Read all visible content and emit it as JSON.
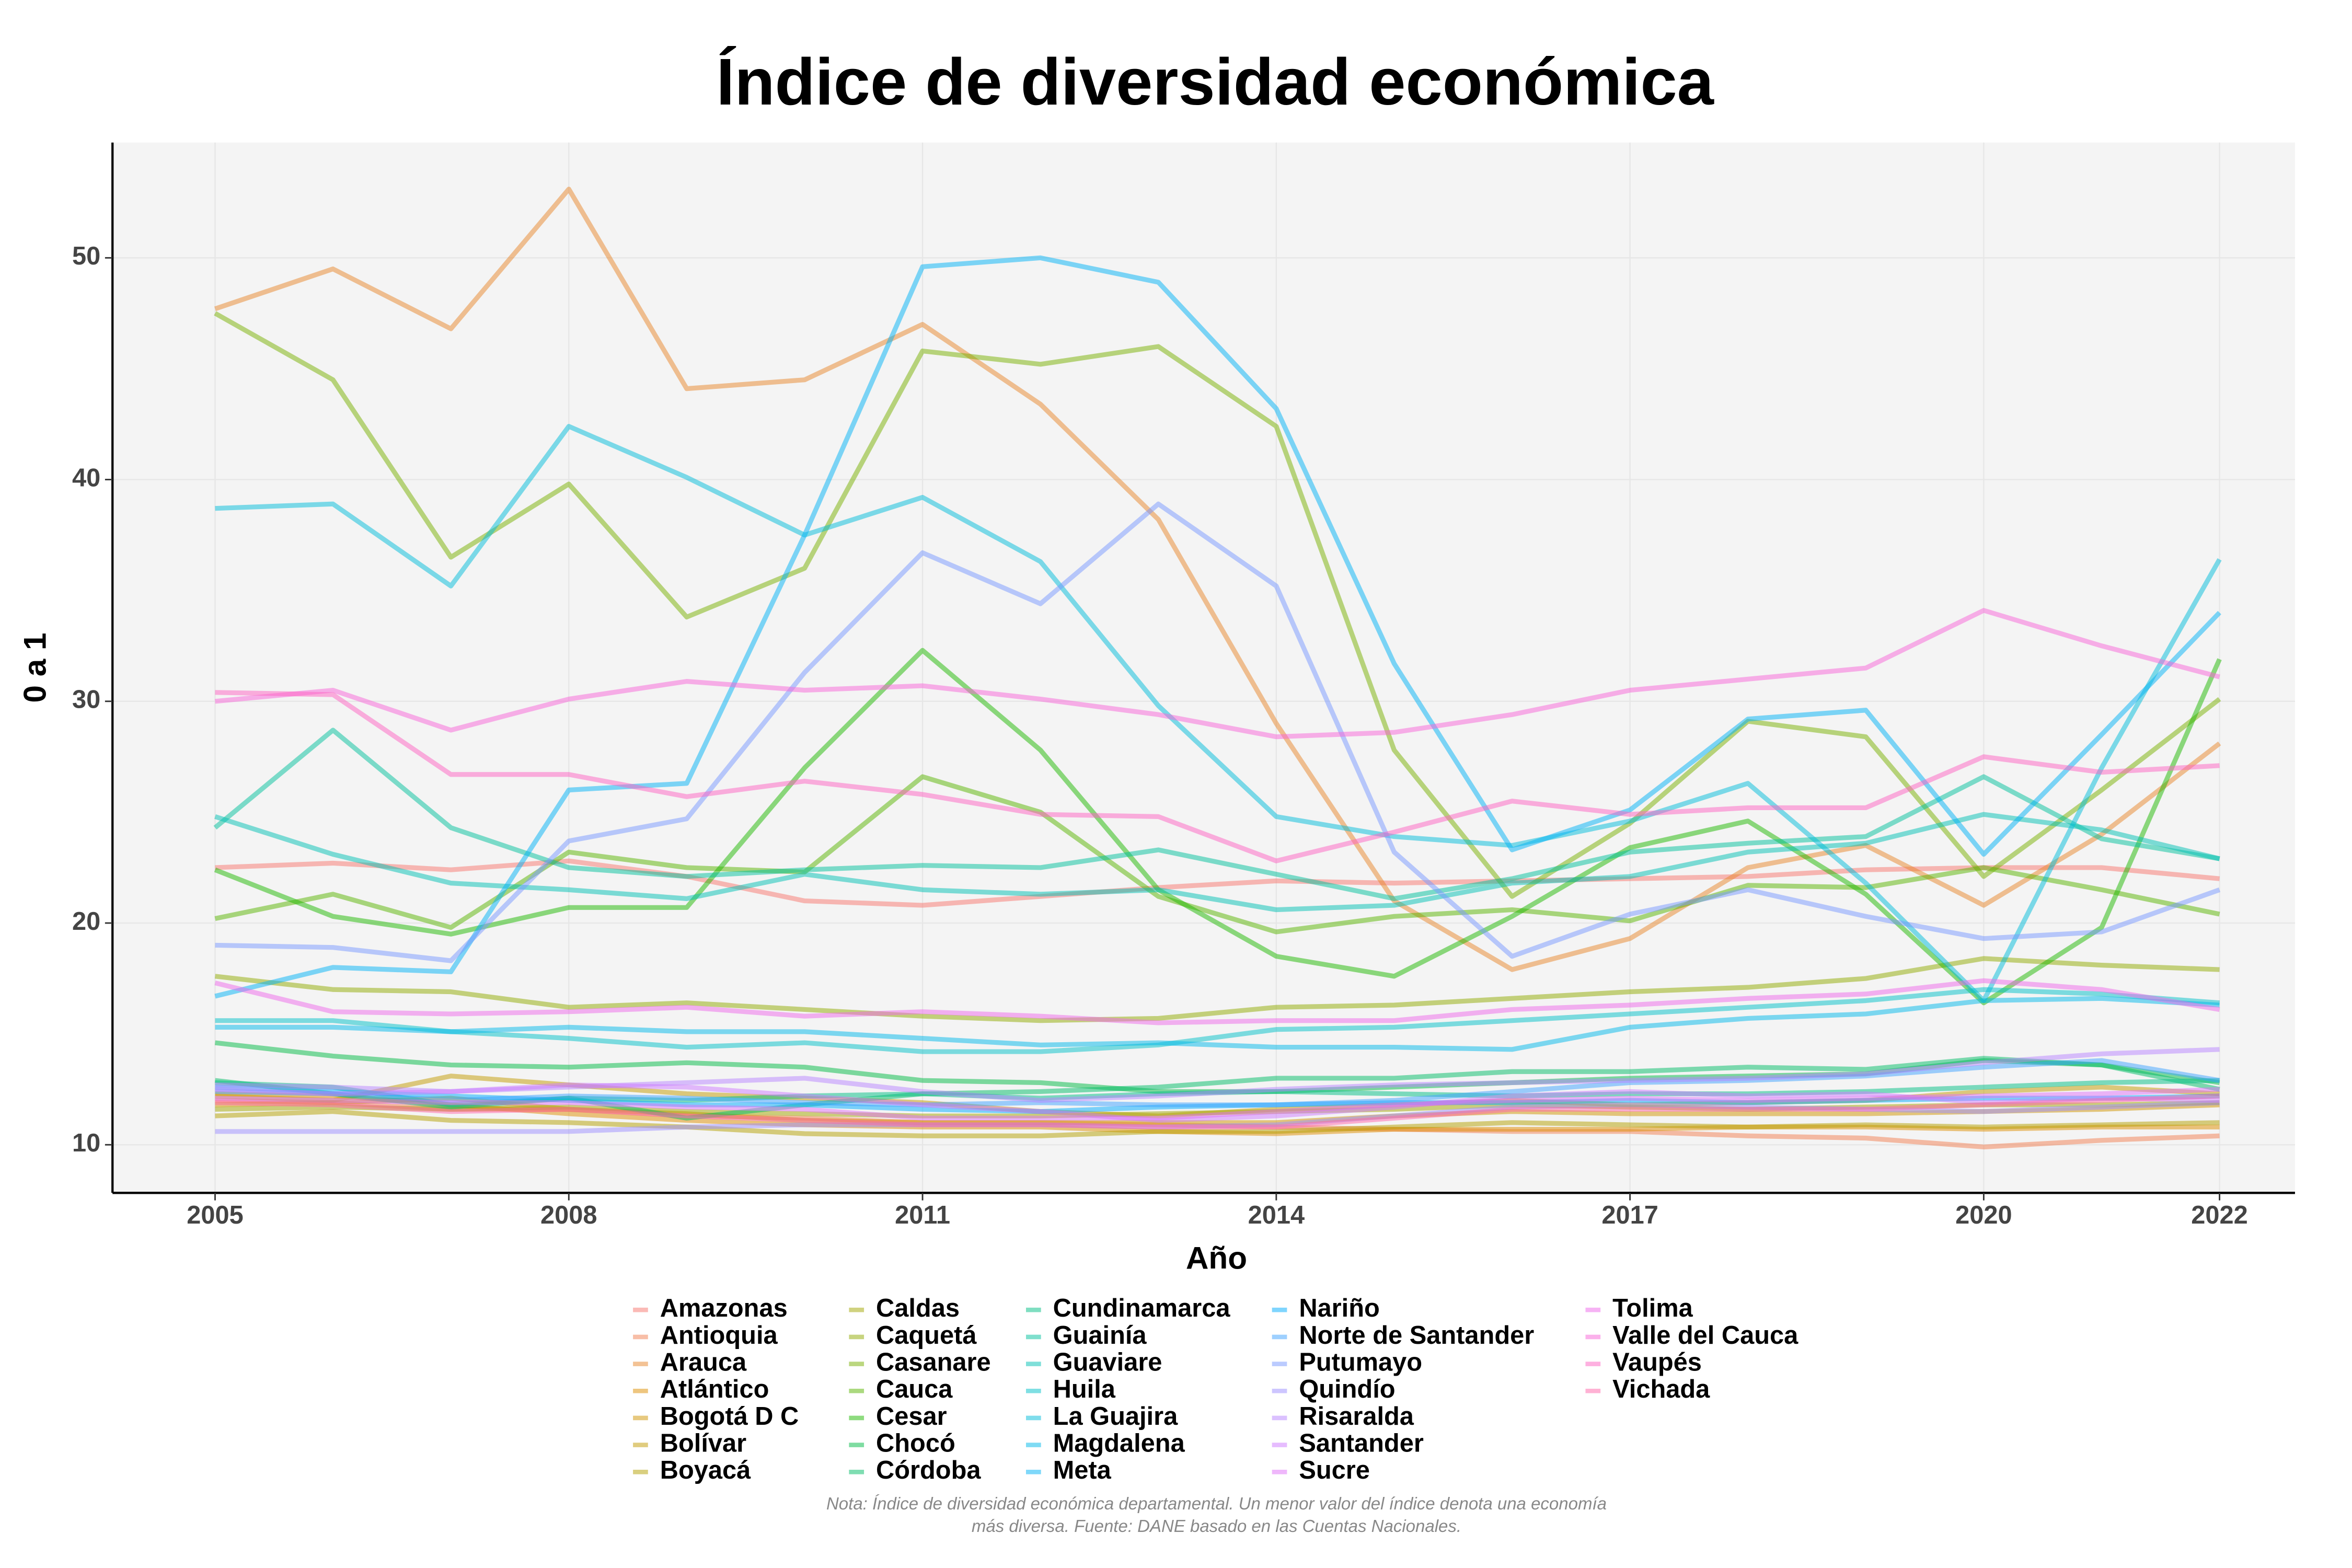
{
  "chart_data": {
    "type": "line",
    "title": "Índice de diversidad económica",
    "x_label": "Año",
    "y_label": "0 a 1",
    "note": [
      "Nota: Índice de diversidad económica departamental. Un menor valor del índice denota una economía",
      "más diversa. Fuente: DANE basado en las Cuentas Nacionales."
    ],
    "x": [
      2005,
      2006,
      2007,
      2008,
      2009,
      2010,
      2011,
      2012,
      2013,
      2014,
      2015,
      2016,
      2017,
      2018,
      2019,
      2020,
      2021,
      2022
    ],
    "xlim": [
      2004.13,
      2022.64
    ],
    "xticks": [
      2005,
      2008,
      2011,
      2014,
      2017,
      2020,
      2022
    ],
    "ylim": [
      7.83,
      55.2
    ],
    "yticks": [
      10,
      20,
      30,
      40,
      50
    ],
    "grid": true,
    "series": [
      {
        "name": "Amazonas",
        "color": "#F8766D",
        "values": [
          22.5,
          22.7,
          22.4,
          22.8,
          22.1,
          21.0,
          20.8,
          21.2,
          21.6,
          21.9,
          21.8,
          21.9,
          22.0,
          22.1,
          22.4,
          22.5,
          22.5,
          22.0
        ]
      },
      {
        "name": "Antioquia",
        "color": "#F17D50",
        "values": [
          12.0,
          11.9,
          11.6,
          11.6,
          11.3,
          11.2,
          11.0,
          11.0,
          10.9,
          10.8,
          10.7,
          10.6,
          10.6,
          10.4,
          10.3,
          9.9,
          10.2,
          10.4
        ]
      },
      {
        "name": "Arauca",
        "color": "#E8852A",
        "values": [
          47.7,
          49.5,
          46.8,
          53.1,
          44.1,
          44.5,
          47.0,
          43.4,
          38.2,
          29.0,
          21.0,
          17.9,
          19.3,
          22.5,
          23.5,
          20.8,
          24.0,
          28.1
        ]
      },
      {
        "name": "Atlántico",
        "color": "#DD8D00",
        "values": [
          12.3,
          12.2,
          11.8,
          11.4,
          11.1,
          10.9,
          10.8,
          10.8,
          10.6,
          10.5,
          10.7,
          10.7,
          10.7,
          10.8,
          10.8,
          10.7,
          10.8,
          10.8
        ]
      },
      {
        "name": "Bogotá D C",
        "color": "#D09400",
        "values": [
          11.8,
          11.9,
          12.1,
          11.6,
          11.4,
          11.1,
          11.0,
          11.0,
          11.0,
          11.0,
          11.3,
          11.5,
          11.4,
          11.4,
          11.4,
          11.5,
          11.6,
          11.8
        ]
      },
      {
        "name": "Bolívar",
        "color": "#C29A00",
        "values": [
          12.2,
          12.0,
          13.1,
          12.7,
          12.3,
          12.1,
          11.9,
          11.5,
          11.3,
          11.6,
          11.8,
          12.0,
          11.8,
          11.9,
          12.0,
          12.4,
          12.6,
          12.3
        ]
      },
      {
        "name": "Boyacá",
        "color": "#B3A000",
        "values": [
          11.3,
          11.5,
          11.1,
          11.0,
          10.8,
          10.5,
          10.4,
          10.4,
          10.6,
          10.6,
          10.8,
          11.0,
          10.9,
          10.8,
          10.9,
          10.8,
          10.9,
          11.0
        ]
      },
      {
        "name": "Caldas",
        "color": "#A2A500",
        "values": [
          11.6,
          11.7,
          11.6,
          11.7,
          11.5,
          11.4,
          11.3,
          11.3,
          11.4,
          11.5,
          11.6,
          11.8,
          11.7,
          11.6,
          11.7,
          11.8,
          11.8,
          11.9
        ]
      },
      {
        "name": "Caquetá",
        "color": "#8FAA00",
        "values": [
          17.6,
          17.0,
          16.9,
          16.2,
          16.4,
          16.1,
          15.8,
          15.6,
          15.7,
          16.2,
          16.3,
          16.6,
          16.9,
          17.1,
          17.5,
          18.4,
          18.1,
          17.9
        ]
      },
      {
        "name": "Casanare",
        "color": "#77AF00",
        "values": [
          47.5,
          44.5,
          36.5,
          39.8,
          33.8,
          36.0,
          45.8,
          45.2,
          46.0,
          42.4,
          27.8,
          21.2,
          24.5,
          29.1,
          28.4,
          22.1,
          26.0,
          30.1
        ]
      },
      {
        "name": "Cauca",
        "color": "#58B300",
        "values": [
          20.2,
          21.3,
          19.8,
          23.2,
          22.5,
          22.3,
          26.6,
          25.0,
          21.2,
          19.6,
          20.3,
          20.6,
          20.1,
          21.7,
          21.6,
          22.5,
          21.5,
          20.4
        ]
      },
      {
        "name": "Cesar",
        "color": "#1EB700",
        "values": [
          22.4,
          20.3,
          19.5,
          20.7,
          20.7,
          27.0,
          32.3,
          27.8,
          21.5,
          18.5,
          17.6,
          20.3,
          23.4,
          24.6,
          21.3,
          16.4,
          19.8,
          31.9
        ]
      },
      {
        "name": "Chocó",
        "color": "#00BA44",
        "values": [
          14.6,
          14.0,
          13.6,
          13.5,
          13.7,
          13.5,
          12.9,
          12.8,
          12.4,
          12.4,
          12.6,
          12.8,
          13.0,
          13.1,
          13.2,
          13.8,
          13.6,
          12.8
        ]
      },
      {
        "name": "Córdoba",
        "color": "#00BC66",
        "values": [
          12.9,
          12.3,
          11.7,
          12.1,
          11.2,
          11.8,
          12.3,
          12.4,
          12.6,
          13.0,
          13.0,
          13.3,
          13.3,
          13.5,
          13.4,
          13.9,
          13.6,
          12.5
        ]
      },
      {
        "name": "Cundinamarca",
        "color": "#00BE83",
        "values": [
          12.8,
          12.6,
          11.8,
          12.1,
          12.0,
          12.2,
          12.3,
          12.1,
          12.3,
          12.4,
          12.3,
          12.2,
          12.3,
          12.3,
          12.4,
          12.6,
          12.8,
          12.9
        ]
      },
      {
        "name": "Guainía",
        "color": "#00C09C",
        "values": [
          24.3,
          28.7,
          24.3,
          22.5,
          22.1,
          22.4,
          22.6,
          22.5,
          23.3,
          22.2,
          21.1,
          22.0,
          23.2,
          23.6,
          23.9,
          26.6,
          23.8,
          22.9
        ]
      },
      {
        "name": "Guaviare",
        "color": "#00C0B3",
        "values": [
          24.8,
          23.1,
          21.8,
          21.5,
          21.1,
          22.2,
          21.5,
          21.3,
          21.5,
          20.6,
          20.8,
          21.8,
          22.1,
          23.2,
          23.6,
          24.9,
          24.2,
          22.9
        ]
      },
      {
        "name": "Huila",
        "color": "#00BFC8",
        "values": [
          15.6,
          15.6,
          15.1,
          14.8,
          14.4,
          14.6,
          14.2,
          14.2,
          14.5,
          15.2,
          15.3,
          15.6,
          15.9,
          16.2,
          16.5,
          17.0,
          16.8,
          16.4
        ]
      },
      {
        "name": "La Guajira",
        "color": "#00BCDA",
        "values": [
          38.7,
          38.9,
          35.2,
          42.4,
          40.1,
          37.5,
          39.2,
          36.3,
          29.8,
          24.8,
          23.9,
          23.5,
          24.6,
          26.3,
          21.8,
          16.5,
          27.0,
          36.4
        ]
      },
      {
        "name": "Magdalena",
        "color": "#00B8E9",
        "values": [
          15.3,
          15.3,
          15.1,
          15.3,
          15.1,
          15.1,
          14.8,
          14.5,
          14.6,
          14.4,
          14.4,
          14.3,
          15.3,
          15.7,
          15.9,
          16.5,
          16.6,
          16.3
        ]
      },
      {
        "name": "Meta",
        "color": "#00B2F5",
        "values": [
          16.7,
          18.0,
          17.8,
          26.0,
          26.3,
          37.5,
          49.6,
          50.0,
          48.9,
          43.2,
          31.7,
          23.3,
          25.1,
          29.2,
          29.6,
          23.1,
          28.5,
          34.0
        ]
      },
      {
        "name": "Nariño",
        "color": "#00ABFD",
        "values": [
          12.6,
          12.4,
          12.2,
          12.0,
          11.8,
          11.8,
          11.6,
          11.5,
          11.7,
          11.8,
          11.9,
          11.9,
          12.0,
          11.9,
          12.0,
          12.1,
          12.1,
          12.2
        ]
      },
      {
        "name": "Norte de Santander",
        "color": "#3EA2FF",
        "values": [
          12.4,
          12.3,
          12.0,
          12.2,
          12.1,
          11.9,
          11.8,
          11.9,
          11.8,
          11.8,
          12.0,
          12.4,
          12.8,
          12.9,
          13.1,
          13.5,
          13.8,
          12.9
        ]
      },
      {
        "name": "Putumayo",
        "color": "#7898FF",
        "values": [
          19.0,
          18.9,
          18.3,
          23.7,
          24.7,
          31.3,
          36.7,
          34.4,
          38.9,
          35.2,
          23.2,
          18.5,
          20.4,
          21.5,
          20.3,
          19.3,
          19.6,
          21.5
        ]
      },
      {
        "name": "Quindío",
        "color": "#9B8EFF",
        "values": [
          10.6,
          10.6,
          10.6,
          10.6,
          10.8,
          10.9,
          10.9,
          10.9,
          10.8,
          10.9,
          11.3,
          11.7,
          11.8,
          11.7,
          11.6,
          11.5,
          11.7,
          11.9
        ]
      },
      {
        "name": "Risaralda",
        "color": "#B784FF",
        "values": [
          12.7,
          12.6,
          12.4,
          12.6,
          12.8,
          13.0,
          12.4,
          12.0,
          12.2,
          12.5,
          12.7,
          12.8,
          12.9,
          13.0,
          13.2,
          13.7,
          14.1,
          14.3
        ]
      },
      {
        "name": "Santander",
        "color": "#CD79FF",
        "values": [
          12.5,
          12.3,
          12.4,
          12.7,
          12.6,
          12.2,
          11.8,
          11.5,
          11.1,
          11.3,
          11.7,
          12.2,
          12.4,
          12.2,
          12.3,
          11.9,
          12.1,
          12.0
        ]
      },
      {
        "name": "Sucre",
        "color": "#DF70F7",
        "values": [
          12.1,
          12.0,
          11.9,
          11.9,
          11.7,
          11.6,
          11.2,
          11.2,
          11.2,
          11.5,
          11.8,
          12.0,
          12.1,
          12.0,
          12.1,
          12.2,
          12.3,
          12.5
        ]
      },
      {
        "name": "Tolima",
        "color": "#ED68E9",
        "values": [
          17.3,
          16.0,
          15.9,
          16.0,
          16.2,
          15.8,
          16.0,
          15.8,
          15.5,
          15.6,
          15.6,
          16.1,
          16.3,
          16.6,
          16.8,
          17.4,
          17.0,
          16.1
        ]
      },
      {
        "name": "Valle del Cauca",
        "color": "#F864D7",
        "values": [
          30.0,
          30.5,
          28.7,
          30.1,
          30.9,
          30.5,
          30.7,
          30.1,
          29.4,
          28.4,
          28.6,
          29.4,
          30.5,
          31.0,
          31.5,
          34.1,
          32.5,
          31.1
        ]
      },
      {
        "name": "Vaupés",
        "color": "#FE62C2",
        "values": [
          30.4,
          30.3,
          26.7,
          26.7,
          25.7,
          26.4,
          25.8,
          24.9,
          24.8,
          22.8,
          24.1,
          25.5,
          24.9,
          25.2,
          25.2,
          27.5,
          26.8,
          27.1
        ]
      },
      {
        "name": "Vichada",
        "color": "#FF65AA",
        "values": [
          11.9,
          11.8,
          11.5,
          11.6,
          11.3,
          11.1,
          10.9,
          10.9,
          10.8,
          10.8,
          11.2,
          11.6,
          11.6,
          11.6,
          11.6,
          11.8,
          12.0,
          12.2
        ]
      }
    ]
  }
}
